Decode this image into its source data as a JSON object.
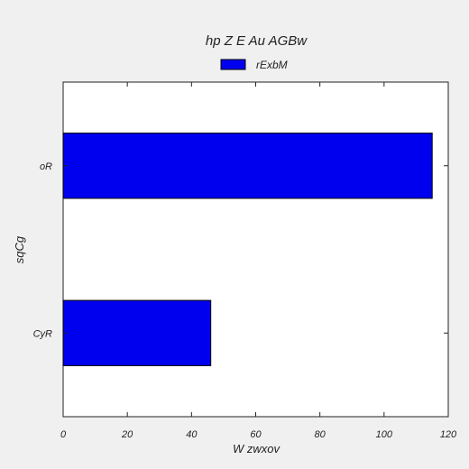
{
  "chart_data": {
    "type": "bar",
    "orientation": "horizontal",
    "title": "hp Z E Au AGBw",
    "xlabel": "W zwxov",
    "ylabel": "sqCg",
    "categories": [
      "CyR",
      "oR"
    ],
    "series": [
      {
        "name": "rExbM",
        "values": [
          46,
          115
        ],
        "color": "#0000ee"
      }
    ],
    "xlim": [
      0,
      120
    ],
    "xticks": [
      0,
      20,
      40,
      60,
      80,
      100,
      120
    ],
    "grid": false,
    "legend_position": "top-center"
  },
  "colors": {
    "background": "#f0f0f0",
    "plot_background": "#ffffff",
    "bar": "#0000ee",
    "axis": "#222222"
  }
}
